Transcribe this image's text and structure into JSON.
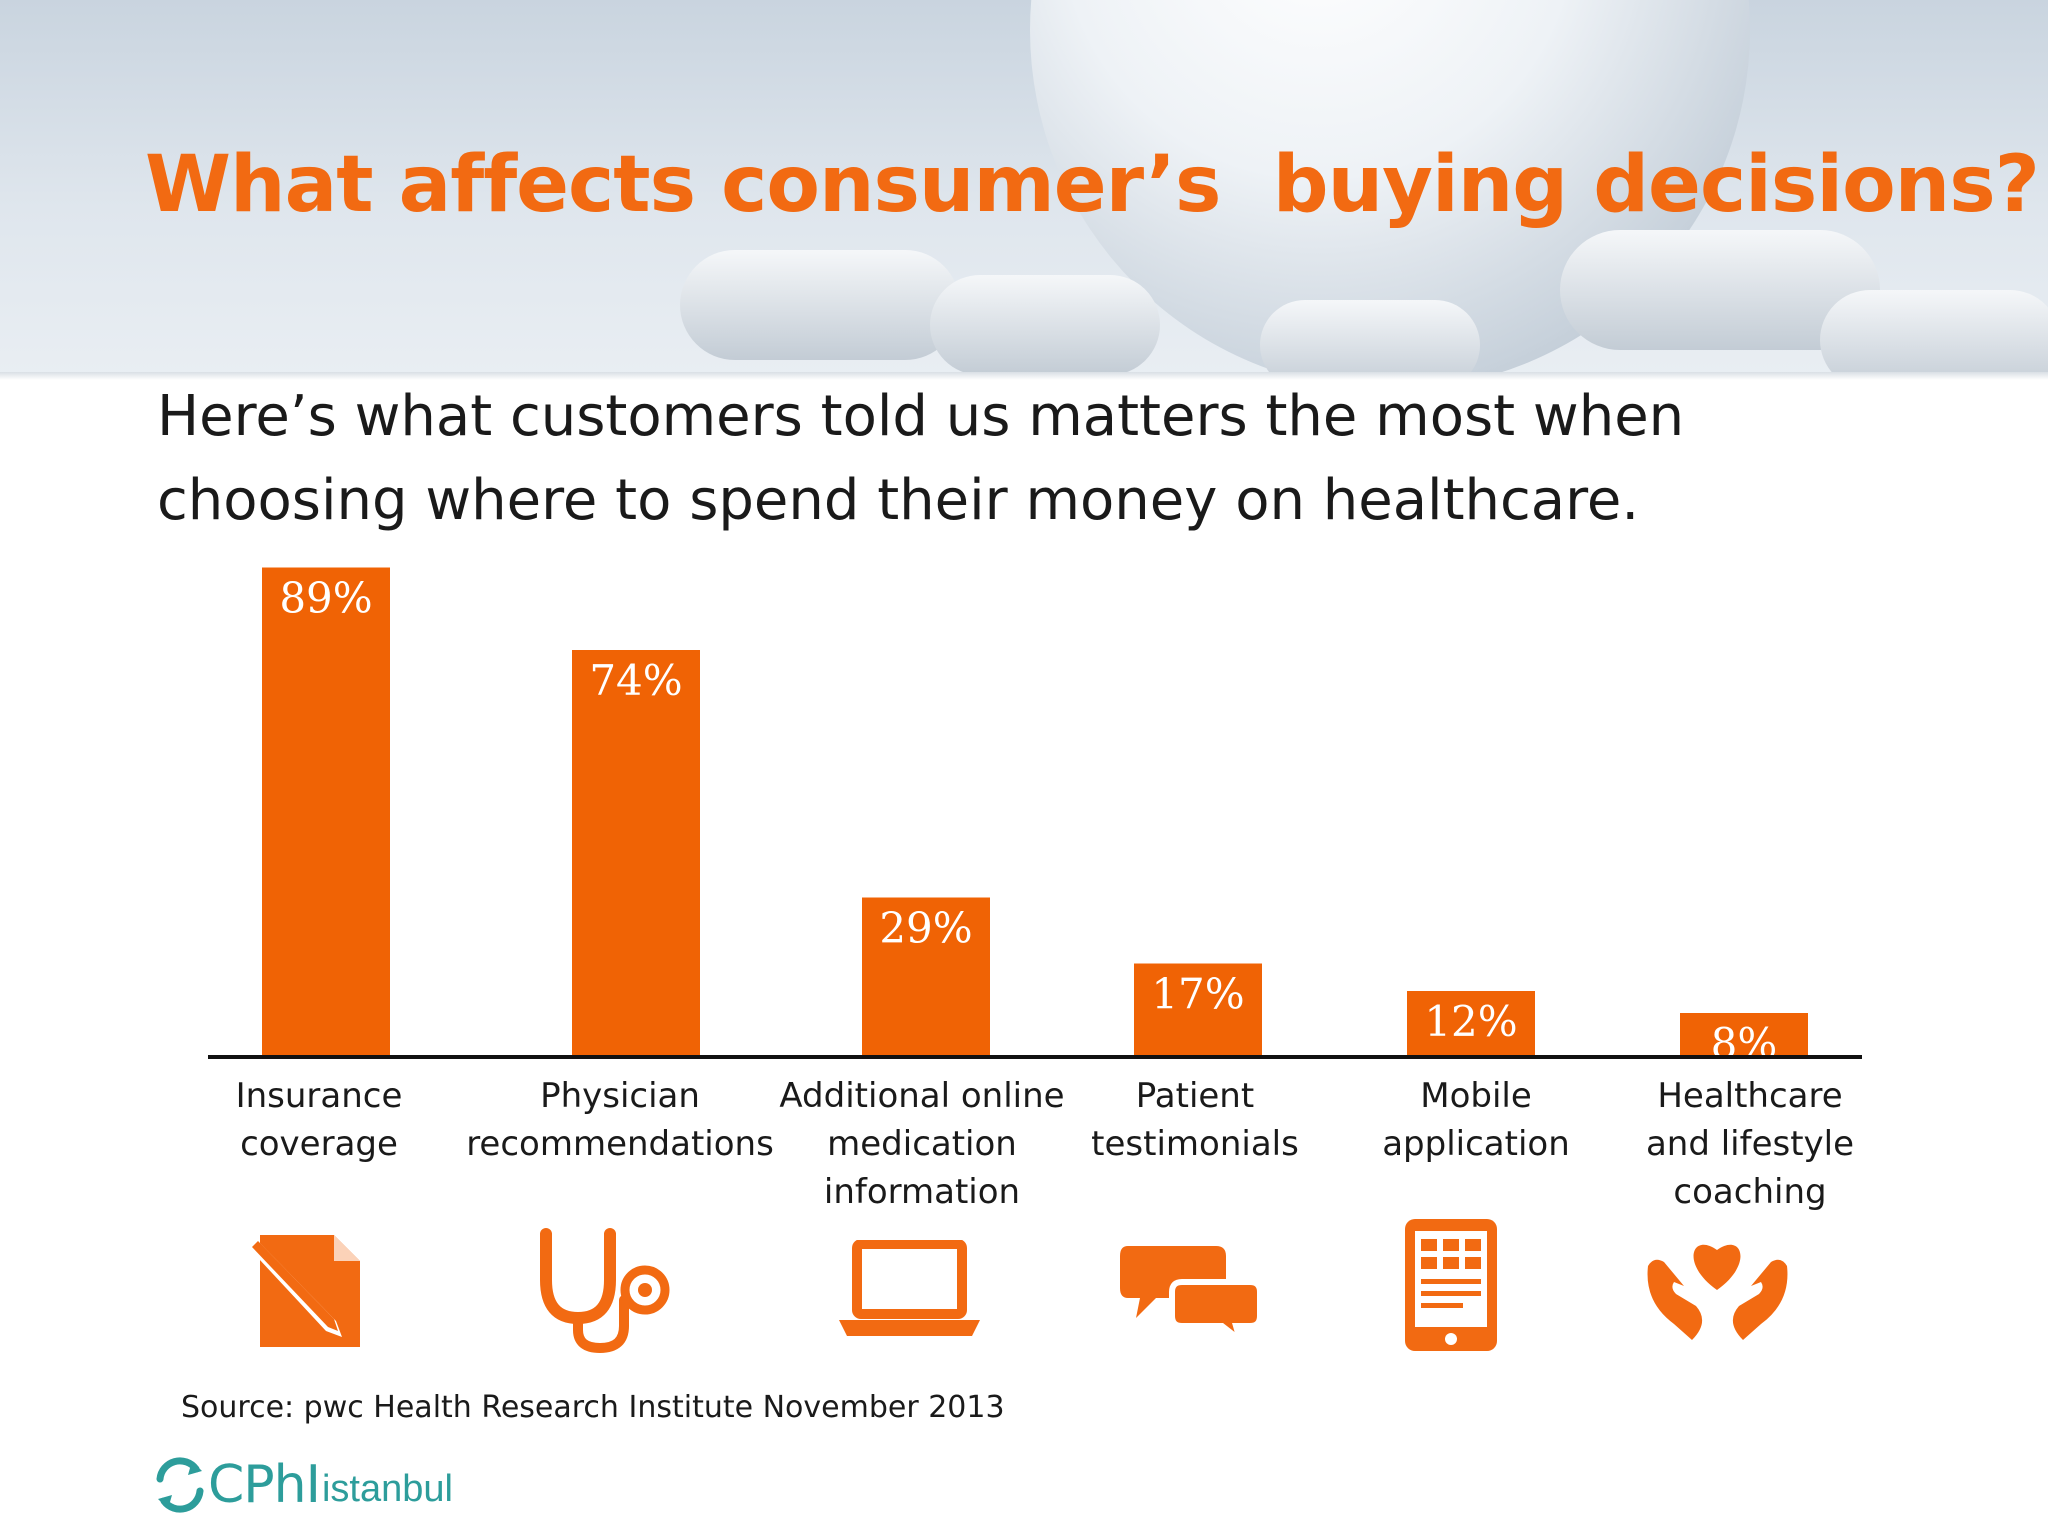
{
  "slide": {
    "title": "What affects consumer’s  buying decisions?",
    "subtitle": "Here’s what customers told us matters the most when choosing where to spend their money on healthcare.",
    "source": "Source: pwc Health Research Institute November 2013",
    "logo_name": "CPhI",
    "logo_sub": "istanbul",
    "accent_color": "#f26a12",
    "bar_color": "#f06305",
    "logo_color": "#2d9d9b"
  },
  "icons": [
    "pen-paper-icon",
    "stethoscope-icon",
    "laptop-icon",
    "chat-bubbles-icon",
    "tablet-icon",
    "heart-hands-icon"
  ],
  "chart_data": {
    "type": "bar",
    "categories": [
      [
        "Insurance",
        "coverage"
      ],
      [
        "Physician",
        "recommendations"
      ],
      [
        "Additional online",
        "medication",
        "information"
      ],
      [
        "Patient",
        "testimonials"
      ],
      [
        "Mobile",
        "application"
      ],
      [
        "Healthcare",
        "and lifestyle",
        "coaching"
      ]
    ],
    "values": [
      89,
      74,
      29,
      17,
      12,
      8
    ],
    "value_labels": [
      "89%",
      "74%",
      "29%",
      "17%",
      "12%",
      "8%"
    ],
    "unit": "%",
    "ylim": [
      0,
      100
    ],
    "grid": false,
    "legend": "none"
  }
}
